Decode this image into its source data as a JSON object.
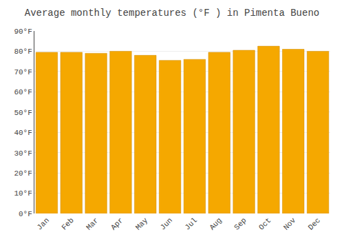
{
  "chart_data": {
    "type": "bar",
    "title": "Average monthly temperatures (°F ) in Pimenta Bueno",
    "categories": [
      "Jan",
      "Feb",
      "Mar",
      "Apr",
      "May",
      "Jun",
      "Jul",
      "Aug",
      "Sep",
      "Oct",
      "Nov",
      "Dec"
    ],
    "values": [
      79.5,
      79.5,
      79.0,
      80.0,
      78.0,
      75.5,
      76.0,
      79.5,
      80.5,
      82.5,
      81.0,
      80.0
    ],
    "color": "#F5A800",
    "ylim": [
      0,
      90
    ],
    "yticks": [
      {
        "value": 0,
        "label": "0°F"
      },
      {
        "value": 10,
        "label": "10°F"
      },
      {
        "value": 20,
        "label": "20°F"
      },
      {
        "value": 30,
        "label": "30°F"
      },
      {
        "value": 40,
        "label": "40°F"
      },
      {
        "value": 50,
        "label": "50°F"
      },
      {
        "value": 60,
        "label": "60°F"
      },
      {
        "value": 70,
        "label": "70°F"
      },
      {
        "value": 80,
        "label": "80°F"
      },
      {
        "value": 90,
        "label": "90°F"
      }
    ],
    "grid": true
  }
}
